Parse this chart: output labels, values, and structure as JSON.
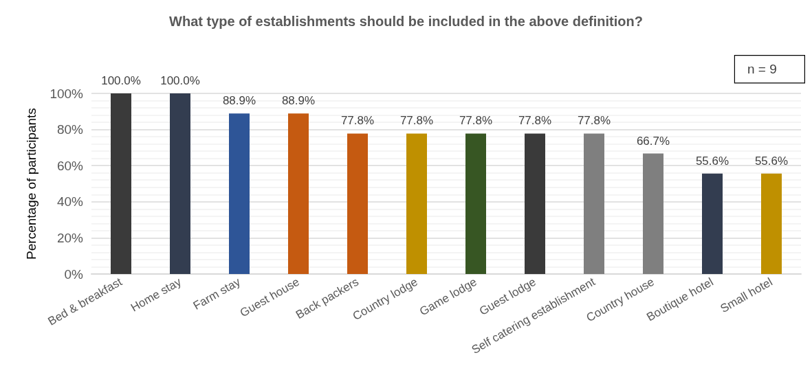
{
  "chart_data": {
    "type": "bar",
    "title": "What type of establishments should be included in the above definition?",
    "ylabel": "Percentage of participants",
    "categories": [
      "Bed & breakfast",
      "Home stay",
      "Farm stay",
      "Guest house",
      "Back packers",
      "Country lodge",
      "Game lodge",
      "Guest lodge",
      "Self catering establishment",
      "Country house",
      "Boutique hotel",
      "Small hotel"
    ],
    "values": [
      100.0,
      100.0,
      88.9,
      88.9,
      77.8,
      77.8,
      77.8,
      77.8,
      77.8,
      66.7,
      55.6,
      55.6
    ],
    "colors": [
      "#3a3a3a",
      "#333d50",
      "#2e5597",
      "#c55a11",
      "#c55a11",
      "#bf9000",
      "#375623",
      "#3a3a3a",
      "#7f7f7f",
      "#7f7f7f",
      "#333d50",
      "#bf9000"
    ],
    "value_labels": [
      "100.0%",
      "100.0%",
      "88.9%",
      "88.9%",
      "77.8%",
      "77.8%",
      "77.8%",
      "77.8%",
      "77.8%",
      "66.7%",
      "55.6%",
      "55.6%"
    ],
    "ylim": [
      0,
      100
    ],
    "yticks": [
      {
        "value": 0,
        "label": "0%"
      },
      {
        "value": 20,
        "label": "20%"
      },
      {
        "value": 40,
        "label": "40%"
      },
      {
        "value": 60,
        "label": "60%"
      },
      {
        "value": 80,
        "label": "80%"
      },
      {
        "value": 100,
        "label": "100%"
      }
    ],
    "grid": true,
    "annotations": [
      "n = 9"
    ]
  }
}
